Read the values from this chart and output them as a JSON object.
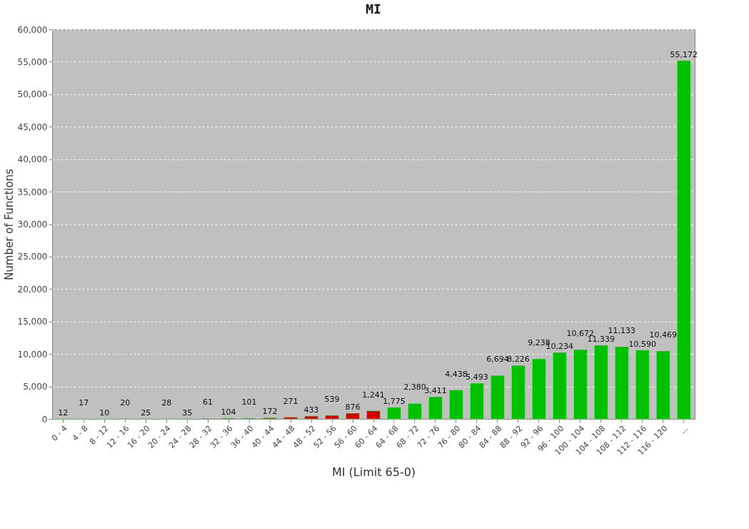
{
  "chart_data": {
    "type": "bar",
    "title": "MI",
    "xlabel": "MI (Limit 65-0)",
    "ylabel": "Number of Functions",
    "categories": [
      "0 - 4",
      "4 - 8",
      "8 - 12",
      "12 - 16",
      "16 - 20",
      "20 - 24",
      "24 - 28",
      "28 - 32",
      "32 - 36",
      "36 - 40",
      "40 - 44",
      "44 - 48",
      "48 - 52",
      "52 - 56",
      "56 - 60",
      "60 - 64",
      "64 - 68",
      "68 - 72",
      "72 - 76",
      "76 - 80",
      "80 - 84",
      "84 - 88",
      "88 - 92",
      "92 - 96",
      "96 - 100",
      "100 - 104",
      "104 - 108",
      "108 - 112",
      "112 - 116",
      "116 - 120",
      "..."
    ],
    "values": [
      12,
      17,
      10,
      20,
      25,
      28,
      35,
      61,
      104,
      101,
      172,
      271,
      433,
      539,
      876,
      1241,
      1775,
      2380,
      3411,
      4438,
      5493,
      6694,
      8226,
      9238,
      10234,
      10672,
      11339,
      11133,
      10590,
      10469,
      55172
    ],
    "colors": [
      "#d40000",
      "#d40000",
      "#d40000",
      "#d40000",
      "#d40000",
      "#d40000",
      "#d40000",
      "#d40000",
      "#d40000",
      "#d40000",
      "#d40000",
      "#d40000",
      "#d40000",
      "#d40000",
      "#d40000",
      "#d40000",
      "#00c000",
      "#00c000",
      "#00c000",
      "#00c000",
      "#00c000",
      "#00c000",
      "#00c000",
      "#00c000",
      "#00c000",
      "#00c000",
      "#00c000",
      "#00c000",
      "#00c000",
      "#00c000",
      "#00c000"
    ],
    "ylim": [
      0,
      60000
    ],
    "yticks": [
      0,
      {
        "value": 5000,
        "label": "5,000"
      },
      {
        "value": 10000,
        "label": "10,000"
      },
      {
        "value": 15000,
        "label": "15,000"
      },
      {
        "value": 20000,
        "label": "20,000"
      },
      {
        "value": 25000,
        "label": "25,000"
      },
      {
        "value": 30000,
        "label": "30,000"
      },
      {
        "value": 35000,
        "label": "35,000"
      },
      {
        "value": 40000,
        "label": "40,000"
      },
      {
        "value": 45000,
        "label": "45,000"
      },
      {
        "value": 50000,
        "label": "50,000"
      },
      {
        "value": 55000,
        "label": "55,000"
      },
      {
        "value": 60000,
        "label": "60,000"
      }
    ],
    "value_labels": [
      "12",
      "17",
      "10",
      "20",
      "25",
      "28",
      "35",
      "61",
      "104",
      "101",
      "172",
      "271",
      "433",
      "539",
      "876",
      "1,241",
      "1,775",
      "2,380",
      "3,411",
      "4,438",
      "5,493",
      "6,694",
      "8,226",
      "9,238",
      "10,234",
      "10,672",
      "11,339",
      "11,133",
      "10,590",
      "10,469",
      "55,172"
    ],
    "grid": "y"
  }
}
